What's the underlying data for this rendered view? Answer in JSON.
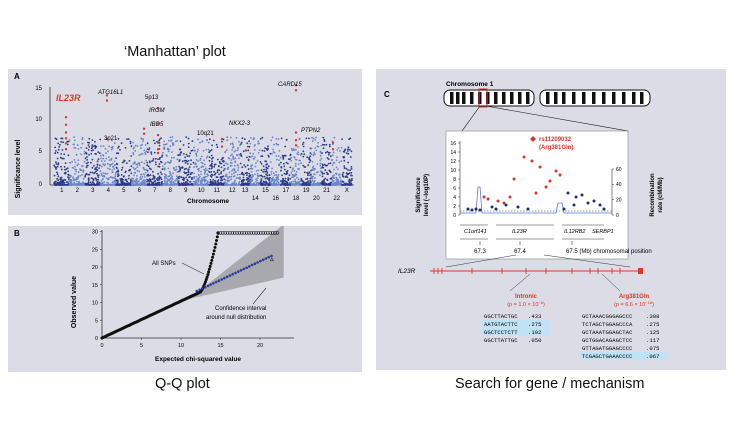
{
  "captions": {
    "manhattan": "‘Manhattan’ plot",
    "qq": "Q-Q plot",
    "search": "Search for gene / mechanism"
  },
  "panel_a": {
    "letter": "A",
    "ylabel": "Significance level",
    "xlabel": "Chromosome",
    "yticks": [
      "15",
      "10",
      "5",
      "0"
    ],
    "chromosomes": [
      "1",
      "2",
      "3",
      "4",
      "5",
      "6",
      "7",
      "8",
      "9",
      "10",
      "11",
      "12",
      "13",
      "15",
      "17",
      "19",
      "21",
      "X"
    ],
    "chromosomes_lower": [
      "14",
      "16",
      "18",
      "20",
      "22"
    ],
    "gene_labels": [
      "IL23R",
      "ATG16L1",
      "5p13",
      "IRGM",
      "IBD5",
      "3p21",
      "10q21",
      "NKX2-3",
      "CARD15",
      "PTPN2"
    ],
    "colors": {
      "bg": "#dcdce6",
      "dark": "#2a3a86",
      "light": "#6a86c8",
      "hit": "#d63a2a"
    }
  },
  "panel_b": {
    "letter": "B",
    "ylabel": "Observed value",
    "xlabel": "Expected chi-squared value",
    "yticks": [
      "30",
      "25",
      "20",
      "15",
      "10",
      "5",
      "0"
    ],
    "xticks": [
      "0",
      "5",
      "10",
      "15",
      "20"
    ],
    "series_label": "All SNPs",
    "ci_label_1": "Confidence interval",
    "ci_label_2": "around null distribution"
  },
  "panel_c": {
    "letter": "C",
    "chromosome_title": "Chromosome 1",
    "snp_label": "rs11209032",
    "snp_sub": "(Arg381Gln)",
    "ylabel_left_1": "Significance",
    "ylabel_left_2": "level (−log",
    "ylabel_right_1": "Recombination",
    "ylabel_right_2": "rate (cM/Mb)",
    "yticks_left": [
      "16",
      "14",
      "12",
      "10",
      "8",
      "6",
      "4",
      "2",
      "0"
    ],
    "yticks_right": [
      "60",
      "40",
      "20",
      "0"
    ],
    "genes": [
      "C1orf141",
      "IL23R",
      "IL12RB2",
      "SERBP1"
    ],
    "xticks": [
      "67.3",
      "67.4",
      "67.5 (Mb) chromosomal position"
    ],
    "gene_track_label": "IL23R",
    "intronic_title": "Intronic",
    "intronic_p": "(p = 1.0 × 10",
    "intronic_exp": "−6",
    "arg_title": "Arg381Gln",
    "arg_p": "(p = 6.6 × 10",
    "arg_exp": "−18",
    "intronic_rows": [
      {
        "seq": "GGCTTACTGC",
        "val": ".433",
        "hl": false
      },
      {
        "seq": "AATGTACTTC",
        "val": ".275",
        "hl": true
      },
      {
        "seq": "GGCTCCTCTT",
        "val": ".192",
        "hl": true
      },
      {
        "seq": "GGCTTATTGC",
        "val": ".050",
        "hl": false
      }
    ],
    "arg_rows": [
      {
        "seq": "GCTAAACGGGAGCCC",
        "val": ".308",
        "hl": false
      },
      {
        "seq": "TCTAGCTGGAGCCCA",
        "val": ".275",
        "hl": false
      },
      {
        "seq": "GCTAAATGGAGCTAC",
        "val": ".125",
        "hl": false
      },
      {
        "seq": "GCTGGACAGAGCTCC",
        "val": ".117",
        "hl": false
      },
      {
        "seq": "GTTAGATGGAGCCCC",
        "val": ".075",
        "hl": false
      },
      {
        "seq": "TCGAGCTGAAACCCC",
        "val": ".067",
        "hl": true
      }
    ],
    "colors": {
      "bg": "#dcdce6",
      "dot_red": "#d63a2a",
      "dot_blue": "#1e2e7a",
      "line": "#5a7ad8",
      "hl": "#bfe3f5"
    }
  }
}
